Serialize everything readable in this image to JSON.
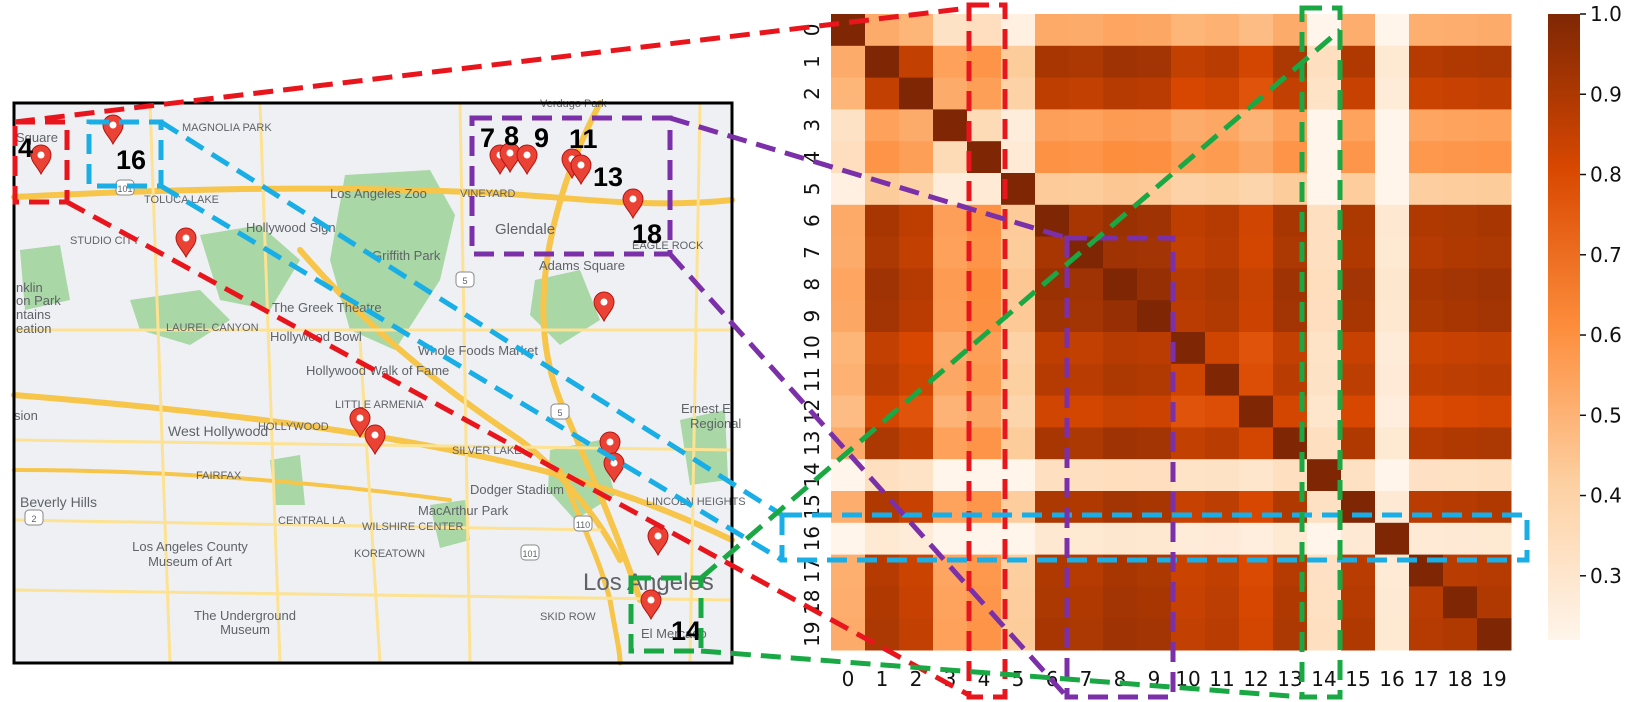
{
  "map": {
    "numbers": [
      "4",
      "16",
      "7",
      "8",
      "9",
      "11",
      "13",
      "18",
      "14"
    ],
    "labels": [
      "Square",
      "MAGNOLIA PARK",
      "TOLUCA LAKE",
      "STUDIO CITY",
      "Hollywood Sign",
      "Los Angeles Zoo",
      "Griffith Park",
      "VINEYARD",
      "Glendale",
      "EAGLE ROCK",
      "Adams Square",
      "The Greek Theatre",
      "LAUREL CANYON",
      "Hollywood Bowl",
      "Whole Foods Market",
      "Hollywood Walk of Fame",
      "LITTLE ARMENIA",
      "HOLLYWOOD",
      "West Hollywood",
      "FAIRFAX",
      "SILVER LAKE",
      "Dodger Stadium",
      "Ernest E",
      "Regional",
      "Beverly Hills",
      "CENTRAL LA",
      "WILSHIRE CENTER",
      "MacArthur Park",
      "KOREATOWN",
      "Los Angeles County Museum of Art",
      "Los Angeles",
      "SKID ROW",
      "The Underground Museum",
      "El Mercado",
      "nklin",
      "on Park",
      "ntains",
      "eation",
      "sion",
      "Verdugo Park",
      "LINCOLN HEIGHTS"
    ],
    "highway_shields": [
      "5",
      "101",
      "2",
      "110",
      "101",
      "5"
    ]
  },
  "chart_data": {
    "type": "heatmap",
    "x_categories": [
      "0",
      "1",
      "2",
      "3",
      "4",
      "5",
      "6",
      "7",
      "8",
      "9",
      "10",
      "11",
      "12",
      "13",
      "14",
      "15",
      "16",
      "17",
      "18",
      "19"
    ],
    "y_categories": [
      "0",
      "1",
      "2",
      "3",
      "4",
      "5",
      "6",
      "7",
      "8",
      "9",
      "10",
      "11",
      "12",
      "13",
      "14",
      "15",
      "16",
      "17",
      "18",
      "19"
    ],
    "row_strength": [
      0.55,
      0.95,
      0.9,
      0.58,
      0.62,
      0.45,
      0.96,
      0.95,
      0.98,
      0.97,
      0.9,
      0.92,
      0.86,
      0.95,
      0.35,
      0.94,
      0.3,
      0.93,
      0.94,
      0.95
    ],
    "colorbar": {
      "ticks": [
        "1.0",
        "0.9",
        "0.8",
        "0.7",
        "0.6",
        "0.5",
        "0.4",
        "0.3"
      ],
      "range": [
        0.22,
        1.0
      ]
    },
    "highlights": {
      "red_column": "4",
      "green_column": "14",
      "blue_row": "16",
      "purple_block": [
        "7",
        "8",
        "9"
      ]
    }
  }
}
